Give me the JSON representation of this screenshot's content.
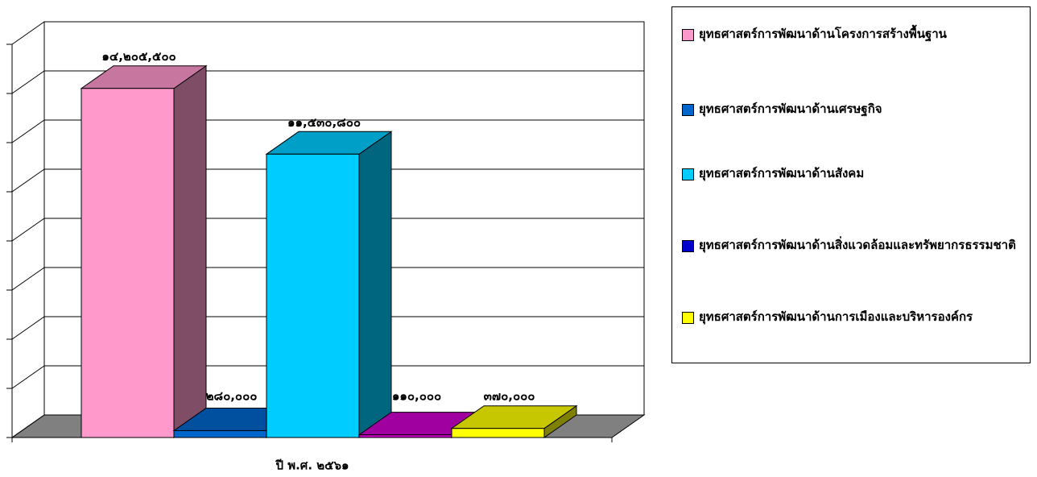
{
  "chart_data": {
    "type": "bar3d",
    "categories": [
      "ปี พ.ศ. ๒๕๖๑"
    ],
    "series": [
      {
        "name": "ยุทธศาสตร์การพัฒนาด้านโครงการสร้างพื้นฐาน",
        "color": "#ff99cc",
        "legend_color": "#ff99cc",
        "values": [
          14205500
        ],
        "value_labels": [
          "๑๔,๒๐๕,๕๐๐"
        ]
      },
      {
        "name": "ยุทธศาสตร์การพัฒนาด้านเศรษฐกิจ",
        "color": "#0066cc",
        "legend_color": "#0066cc",
        "values": [
          280000
        ],
        "value_labels": [
          "๒๘๐,๐๐๐"
        ]
      },
      {
        "name": "ยุทธศาสตร์การพัฒนาด้านสังคม",
        "color": "#00ccff",
        "legend_color": "#00ccff",
        "values": [
          11530800
        ],
        "value_labels": [
          "๑๑,๕๓๐,๘๐๐"
        ]
      },
      {
        "name": "ยุทธศาสตร์การพัฒนาด้านสิ่งแวดล้อมและทรัพยากรธรรมชาติ",
        "color": "#cc00cc",
        "legend_color": "#0000cc",
        "values": [
          110000
        ],
        "value_labels": [
          "๑๑๐,๐๐๐"
        ]
      },
      {
        "name": "ยุทธศาสตร์การพัฒนาด้านการเมืองและบริหารองค์กร",
        "color": "#ffff00",
        "legend_color": "#ffff00",
        "values": [
          370000
        ],
        "value_labels": [
          "๓๗๐,๐๐๐"
        ]
      }
    ],
    "ylim": [
      0,
      16000000
    ],
    "yticks": [
      0,
      2000000,
      4000000,
      6000000,
      8000000,
      10000000,
      12000000,
      14000000,
      16000000
    ],
    "grid": true
  }
}
